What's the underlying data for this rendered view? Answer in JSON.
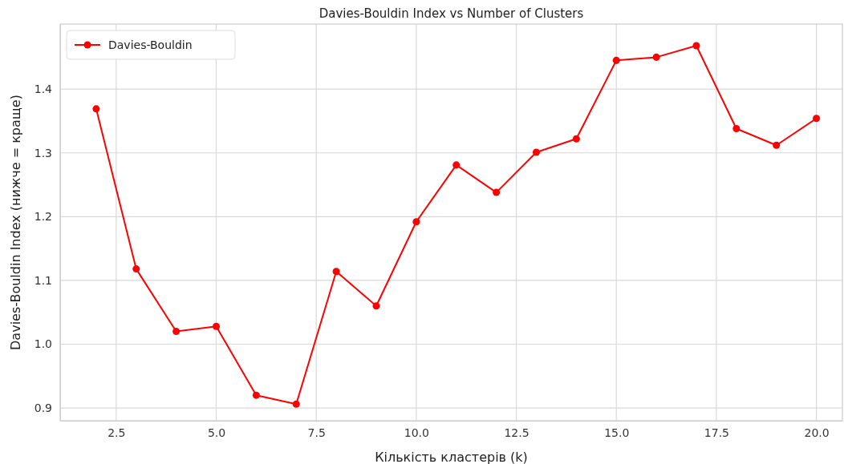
{
  "chart_data": {
    "type": "line",
    "title": "Davies-Bouldin Index vs Number of Clusters",
    "xlabel": "Кількість кластерів (k)",
    "ylabel": "Davies-Bouldin Index (нижче = краще)",
    "x": [
      2,
      3,
      4,
      5,
      6,
      7,
      8,
      9,
      10,
      11,
      12,
      13,
      14,
      15,
      16,
      17,
      18,
      19,
      20
    ],
    "series": [
      {
        "name": "Davies-Bouldin",
        "color": "#ff0000",
        "values": [
          1.369,
          1.118,
          1.02,
          1.028,
          0.92,
          0.906,
          1.114,
          1.06,
          1.192,
          1.281,
          1.238,
          1.301,
          1.322,
          1.445,
          1.45,
          1.468,
          1.338,
          1.312,
          1.354
        ]
      }
    ],
    "xlim": [
      1.1,
      20.65
    ],
    "ylim": [
      0.88,
      1.502
    ],
    "xticks": [
      {
        "value": 2.5,
        "label": "2.5"
      },
      {
        "value": 5,
        "label": "5.0"
      },
      {
        "value": 7.5,
        "label": "7.5"
      },
      {
        "value": 10,
        "label": "10.0"
      },
      {
        "value": 12.5,
        "label": "12.5"
      },
      {
        "value": 15,
        "label": "15.0"
      },
      {
        "value": 17.5,
        "label": "17.5"
      },
      {
        "value": 20,
        "label": "20.0"
      }
    ],
    "yticks": [
      {
        "value": 0.9,
        "label": "0.9"
      },
      {
        "value": 1,
        "label": "1.0"
      },
      {
        "value": 1.1,
        "label": "1.1"
      },
      {
        "value": 1.2,
        "label": "1.2"
      },
      {
        "value": 1.3,
        "label": "1.3"
      },
      {
        "value": 1.4,
        "label": "1.4"
      }
    ],
    "grid": true,
    "legend": "top left",
    "marker": "circle",
    "line_style": "solid"
  }
}
